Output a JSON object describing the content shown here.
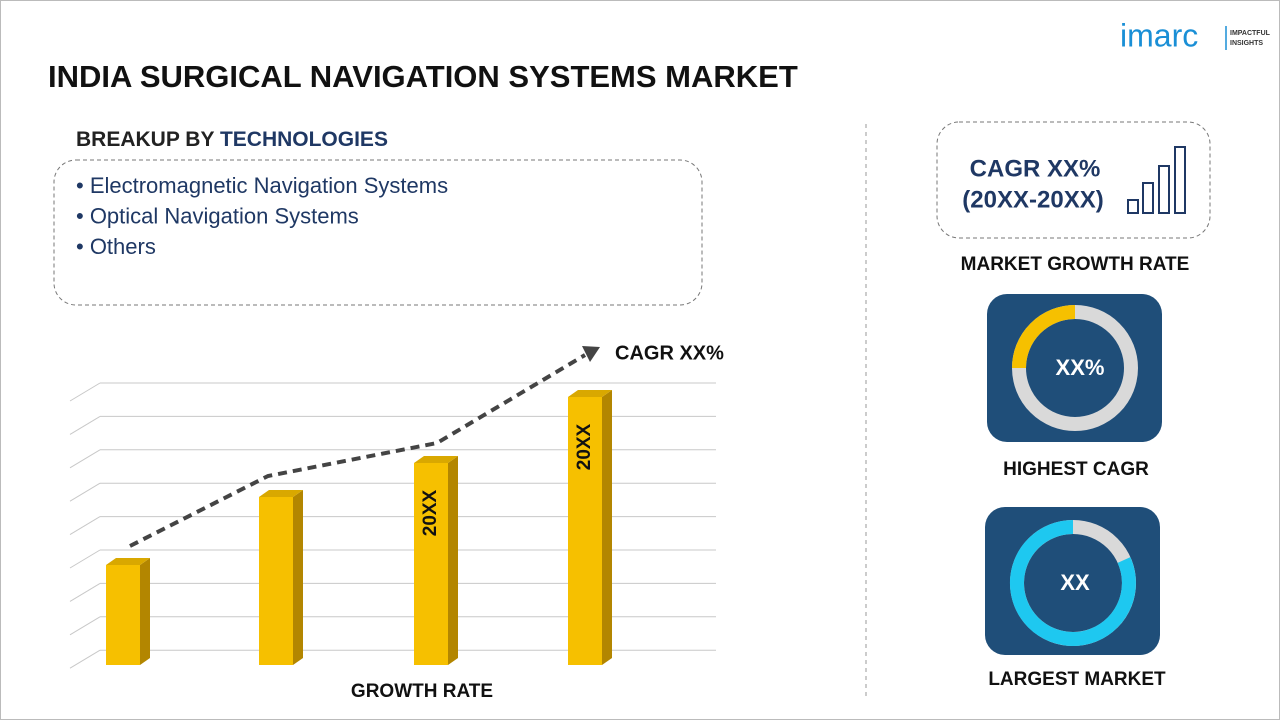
{
  "logo": {
    "brand": "imarc",
    "tagline": [
      "IMPACTFUL",
      "INSIGHTS"
    ]
  },
  "title": "INDIA SURGICAL NAVIGATION SYSTEMS MARKET",
  "breakup": {
    "prefix": "BREAKUP BY",
    "dimension": "TECHNOLOGIES",
    "items": [
      "• Electromagnetic Navigation Systems",
      "• Optical Navigation Systems",
      "• Others"
    ]
  },
  "growth_chart": {
    "trend_label": "CAGR XX%",
    "bar_labels": [
      "20XX",
      "20XX"
    ],
    "axis_label": "GROWTH RATE"
  },
  "market_growth": {
    "cagr": "CAGR XX%",
    "period": "(20XX-20XX)",
    "caption": "MARKET GROWTH RATE"
  },
  "highest_cagr": {
    "value": "XX%",
    "caption": "HIGHEST CAGR"
  },
  "largest_market": {
    "value": "XX",
    "caption": "LARGEST MARKET"
  }
}
